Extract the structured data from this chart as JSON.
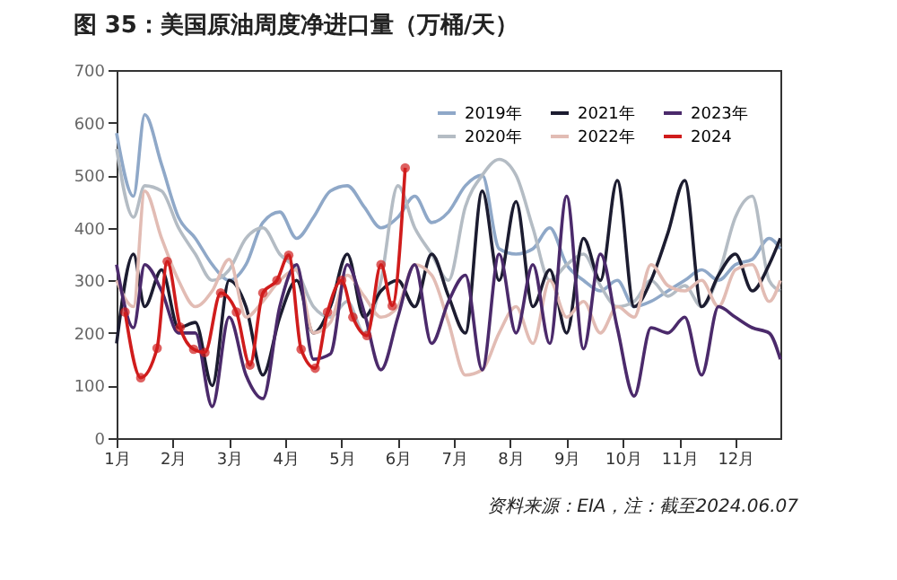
{
  "chart_data": {
    "type": "line",
    "title": "图 35：美国原油周度净进口量（万桶/天）",
    "annotations": [
      "资料来源：EIA，注：截至2024.06.07"
    ],
    "x": [
      1.0,
      1.3,
      1.5,
      1.8,
      2.1,
      2.4,
      2.7,
      3.0,
      3.3,
      3.6,
      3.9,
      4.2,
      4.5,
      4.8,
      5.1,
      5.4,
      5.7,
      6.0,
      6.3,
      6.6,
      6.9,
      7.2,
      7.5,
      7.8,
      8.1,
      8.4,
      8.7,
      9.0,
      9.3,
      9.6,
      9.9,
      10.2,
      10.5,
      10.8,
      11.1,
      11.4,
      11.7,
      12.0,
      12.3,
      12.6,
      12.8
    ],
    "xlim": [
      1,
      12.8
    ],
    "xticks": [
      {
        "value": 1,
        "label": "1月"
      },
      {
        "value": 2,
        "label": "2月"
      },
      {
        "value": 3,
        "label": "3月"
      },
      {
        "value": 4,
        "label": "4月"
      },
      {
        "value": 5,
        "label": "5月"
      },
      {
        "value": 6,
        "label": "6月"
      },
      {
        "value": 7,
        "label": "7月"
      },
      {
        "value": 8,
        "label": "8月"
      },
      {
        "value": 9,
        "label": "9月"
      },
      {
        "value": 10,
        "label": "10月"
      },
      {
        "value": 11,
        "label": "11月"
      },
      {
        "value": 12,
        "label": "12月"
      }
    ],
    "ylim": [
      0,
      700
    ],
    "yticks": [
      0,
      100,
      200,
      300,
      400,
      500,
      600,
      700
    ],
    "grid": false,
    "legend": "top right",
    "line_style": "solid",
    "series": [
      {
        "name": "2019年",
        "color": "#8fa8c8",
        "values": [
          580,
          460,
          615,
          520,
          420,
          380,
          330,
          300,
          330,
          410,
          430,
          380,
          420,
          470,
          480,
          440,
          400,
          420,
          460,
          410,
          430,
          480,
          500,
          360,
          350,
          360,
          400,
          330,
          300,
          280,
          300,
          250,
          260,
          280,
          300,
          320,
          300,
          330,
          340,
          380,
          360
        ]
      },
      {
        "name": "2020年",
        "color": "#b4bcc4",
        "values": [
          550,
          420,
          480,
          470,
          400,
          350,
          300,
          320,
          380,
          400,
          350,
          320,
          250,
          230,
          260,
          200,
          300,
          480,
          400,
          350,
          300,
          440,
          500,
          530,
          500,
          400,
          300,
          330,
          350,
          290,
          250,
          260,
          300,
          270,
          290,
          250,
          310,
          420,
          460,
          300,
          280
        ]
      },
      {
        "name": "2021年",
        "color": "#1c1c30",
        "values": [
          180,
          350,
          250,
          320,
          210,
          220,
          100,
          300,
          250,
          120,
          230,
          300,
          200,
          250,
          350,
          230,
          280,
          300,
          250,
          350,
          270,
          200,
          470,
          300,
          450,
          250,
          320,
          200,
          380,
          300,
          490,
          250,
          300,
          390,
          490,
          250,
          310,
          350,
          280,
          330,
          380
        ]
      },
      {
        "name": "2022年",
        "color": "#e2bcb4",
        "values": [
          300,
          250,
          470,
          380,
          300,
          250,
          280,
          340,
          230,
          260,
          300,
          320,
          200,
          220,
          310,
          270,
          230,
          250,
          330,
          310,
          220,
          120,
          130,
          200,
          250,
          180,
          300,
          230,
          260,
          200,
          250,
          230,
          330,
          290,
          280,
          300,
          250,
          320,
          330,
          260,
          300
        ]
      },
      {
        "name": "2023年",
        "color": "#4b2a6b",
        "values": [
          330,
          210,
          330,
          280,
          200,
          200,
          60,
          230,
          120,
          75,
          250,
          330,
          150,
          160,
          330,
          240,
          130,
          230,
          330,
          180,
          260,
          310,
          130,
          350,
          200,
          330,
          180,
          460,
          170,
          350,
          210,
          80,
          210,
          200,
          230,
          120,
          250,
          230,
          210,
          200,
          150
        ]
      },
      {
        "name": "2024",
        "color": "#d01c1c",
        "marker": "circle",
        "x": [
          1.15,
          1.43,
          1.72,
          1.9,
          2.13,
          2.37,
          2.57,
          2.85,
          3.13,
          3.37,
          3.6,
          3.85,
          4.06,
          4.28,
          4.53,
          4.75,
          5.0,
          5.2,
          5.45,
          5.7,
          5.9,
          6.13
        ],
        "values": [
          240,
          115,
          171,
          336,
          211,
          169,
          163,
          276,
          240,
          139,
          276,
          300,
          348,
          169,
          133,
          240,
          300,
          230,
          195,
          330,
          252,
          514
        ]
      }
    ]
  }
}
